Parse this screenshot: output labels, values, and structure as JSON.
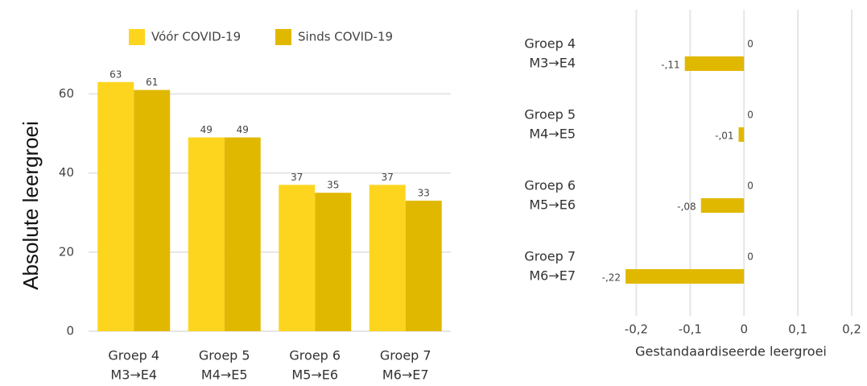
{
  "chart_data": [
    {
      "type": "bar",
      "y_label": "Absolute leergroei",
      "categories": [
        [
          "Groep 4",
          "M3→E4"
        ],
        [
          "Groep 5",
          "M4→E5"
        ],
        [
          "Groep 6",
          "M5→E6"
        ],
        [
          "Groep 7",
          "M6→E7"
        ]
      ],
      "series": [
        {
          "name": "Vóór COVID-19",
          "color": "#fdd51f",
          "values": [
            63,
            49,
            37,
            37
          ]
        },
        {
          "name": "Sinds COVID-19",
          "color": "#e1b800",
          "values": [
            61,
            49,
            35,
            33
          ]
        }
      ],
      "ylim": [
        0,
        65
      ],
      "yticks": [
        0,
        20,
        40,
        60
      ],
      "grid": true,
      "legend": "top"
    },
    {
      "type": "barh",
      "x_label": "Gestandaardiseerde leergroei",
      "categories": [
        [
          "Groep 4",
          "M3→E4"
        ],
        [
          "Groep 5",
          "M4→E5"
        ],
        [
          "Groep 6",
          "M5→E6"
        ],
        [
          "Groep 7",
          "M6→E7"
        ]
      ],
      "series": [
        {
          "color": "#fdd51f",
          "values": [
            0,
            0,
            0,
            0
          ]
        },
        {
          "color": "#e1b800",
          "values": [
            -0.11,
            -0.01,
            -0.08,
            -0.22
          ],
          "value_labels": [
            "-,11",
            "-,01",
            "-,08",
            "-,22"
          ]
        }
      ],
      "xlim": [
        -0.25,
        0.2
      ],
      "xticks": [
        {
          "value": -0.2,
          "label": "-0,2"
        },
        {
          "value": -0.1,
          "label": "-0,1"
        },
        0,
        {
          "value": 0.1,
          "label": "0,1"
        },
        {
          "value": 0.2,
          "label": "0,2"
        }
      ],
      "grid": true
    }
  ]
}
